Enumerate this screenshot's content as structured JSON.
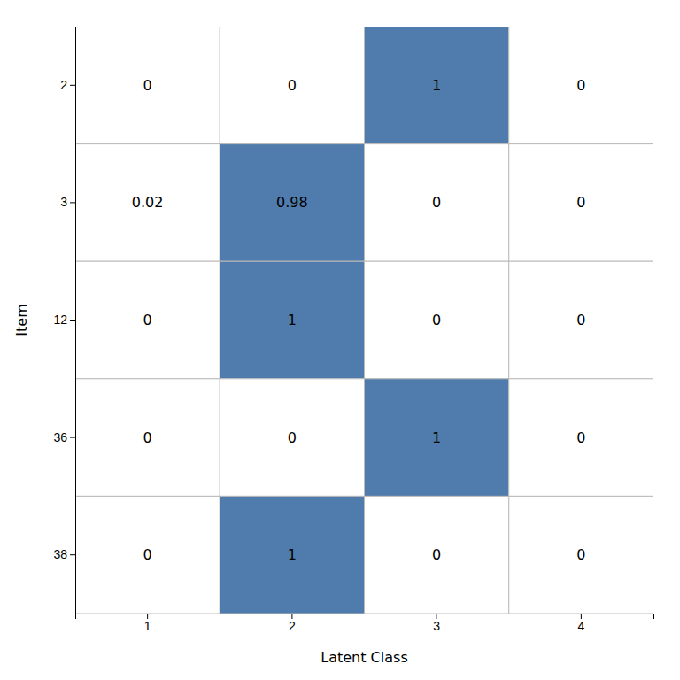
{
  "chart_data": {
    "type": "heatmap",
    "xlabel": "Latent Class",
    "ylabel": "Item",
    "x": [
      1,
      2,
      3,
      4
    ],
    "y": [
      2,
      3,
      12,
      36,
      38
    ],
    "values": [
      [
        0,
        0,
        1,
        0
      ],
      [
        0.02,
        0.98,
        0,
        0
      ],
      [
        0,
        1,
        0,
        0
      ],
      [
        0,
        0,
        1,
        0
      ],
      [
        0,
        1,
        0,
        0
      ]
    ],
    "colors": [
      [
        "#ffffff",
        "#ffffff",
        "#4f7cac",
        "#ffffff"
      ],
      [
        "#ffffff",
        "#4f7cac",
        "#ffffff",
        "#ffffff"
      ],
      [
        "#ffffff",
        "#4f7cac",
        "#ffffff",
        "#ffffff"
      ],
      [
        "#ffffff",
        "#ffffff",
        "#4f7cac",
        "#ffffff"
      ],
      [
        "#ffffff",
        "#4f7cac",
        "#ffffff",
        "#ffffff"
      ]
    ],
    "data_labels": true
  }
}
